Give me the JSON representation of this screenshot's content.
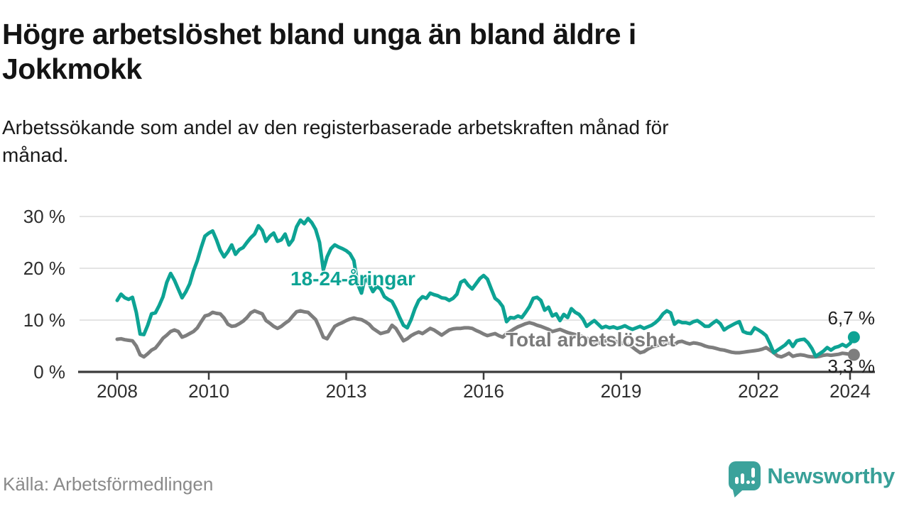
{
  "header": {
    "title": "Högre arbetslöshet bland unga än bland äldre i\nJokkmokk",
    "subtitle": "Arbetssökande som andel av den registerbaserade arbetskraften månad för\nmånad."
  },
  "footer": {
    "source": "Källa: Arbetsförmedlingen",
    "brand": "Newsworthy"
  },
  "colors": {
    "youth_line": "#0da394",
    "total_line": "#7e7e7e",
    "gridline": "#dcdcdc",
    "axis": "#3c3c3c",
    "tick_text": "#2e2e2e",
    "end_label_text": "#1f1f1f",
    "brand_teal": "#3ba29b"
  },
  "chart_data": {
    "type": "line",
    "title": "Högre arbetslöshet bland unga än bland äldre i Jokkmokk",
    "xlabel": "",
    "ylabel": "Arbetssökande som andel av den registerbaserade arbetskraften",
    "x_unit": "monthly, January 2008 – February 2024",
    "ylim": [
      0,
      31
    ],
    "grid": "horizontal",
    "legend_position": "inline-labels",
    "y_ticks": [
      0,
      10,
      20,
      30
    ],
    "y_tick_labels": [
      "0 %",
      "10 %",
      "20 %",
      "30 %"
    ],
    "x_tick_years": [
      2008,
      2010,
      2013,
      2016,
      2019,
      2022,
      2024
    ],
    "x_tick_labels": [
      "2008",
      "2010",
      "2013",
      "2016",
      "2019",
      "2022",
      "2024"
    ],
    "start_year": 2008,
    "series": [
      {
        "name": "Total arbetslöshet",
        "color": "#7e7e7e",
        "end_label": "3,3 %",
        "end_value": 3.3,
        "values_monthly": [
          6.3,
          6.4,
          6.2,
          6.1,
          6.0,
          5.0,
          3.3,
          2.9,
          3.5,
          4.2,
          4.6,
          5.5,
          6.5,
          7.1,
          7.8,
          8.1,
          7.8,
          6.7,
          7.0,
          7.4,
          7.8,
          8.5,
          9.7,
          10.8,
          11.0,
          11.5,
          11.3,
          11.2,
          10.4,
          9.2,
          8.8,
          8.9,
          9.3,
          9.8,
          10.5,
          11.4,
          11.8,
          11.5,
          11.2,
          9.9,
          9.4,
          8.8,
          8.4,
          8.8,
          9.4,
          9.9,
          10.8,
          11.6,
          11.8,
          11.6,
          11.5,
          10.8,
          10.1,
          8.5,
          6.7,
          6.4,
          7.6,
          8.8,
          9.2,
          9.5,
          9.9,
          10.2,
          10.4,
          10.2,
          10.1,
          9.7,
          9.2,
          8.4,
          7.9,
          7.4,
          7.6,
          7.8,
          9.0,
          8.4,
          7.2,
          6.0,
          6.4,
          7.0,
          7.4,
          7.7,
          7.4,
          7.9,
          8.4,
          8.1,
          7.6,
          7.1,
          7.6,
          8.1,
          8.3,
          8.4,
          8.4,
          8.5,
          8.5,
          8.4,
          8.0,
          7.7,
          7.3,
          7.0,
          7.2,
          7.4,
          7.0,
          6.7,
          7.4,
          7.8,
          8.3,
          8.7,
          9.0,
          9.3,
          9.5,
          9.3,
          9.0,
          8.8,
          8.5,
          8.2,
          7.8,
          8.0,
          8.2,
          7.9,
          7.6,
          7.4,
          7.2,
          7.0,
          6.8,
          6.5,
          6.2,
          5.8,
          5.5,
          5.8,
          6.0,
          6.2,
          6.0,
          5.8,
          5.6,
          5.4,
          5.2,
          4.8,
          4.2,
          3.7,
          3.9,
          4.4,
          4.8,
          5.0,
          5.2,
          5.5,
          5.6,
          5.5,
          5.3,
          5.8,
          5.9,
          5.6,
          5.4,
          5.6,
          5.5,
          5.3,
          5.0,
          4.8,
          4.7,
          4.5,
          4.3,
          4.2,
          4.0,
          3.8,
          3.7,
          3.7,
          3.8,
          3.9,
          4.0,
          4.1,
          4.2,
          4.4,
          4.7,
          4.2,
          3.7,
          3.1,
          2.9,
          3.2,
          3.6,
          3.0,
          3.2,
          3.3,
          3.2,
          3.0,
          2.9,
          2.9,
          3.0,
          3.2,
          3.3,
          3.2,
          3.3,
          3.4,
          3.6,
          3.5,
          3.4,
          3.3
        ]
      },
      {
        "name": "18-24-åringar",
        "color": "#0da394",
        "end_label": "6,7 %",
        "end_value": 6.7,
        "values_monthly": [
          13.8,
          15.0,
          14.3,
          14.0,
          14.4,
          11.5,
          7.3,
          7.2,
          9.0,
          11.2,
          11.4,
          12.8,
          14.5,
          17.3,
          19.0,
          17.7,
          16.0,
          14.3,
          15.5,
          17.0,
          19.5,
          21.5,
          24.0,
          26.2,
          26.8,
          27.2,
          25.5,
          23.5,
          22.2,
          23.2,
          24.5,
          22.7,
          23.6,
          24.0,
          25.0,
          25.9,
          26.6,
          28.2,
          27.3,
          25.2,
          26.2,
          26.8,
          25.2,
          25.5,
          26.6,
          24.5,
          25.5,
          28.0,
          29.3,
          28.6,
          29.6,
          28.8,
          27.5,
          25.0,
          19.7,
          22.2,
          23.8,
          24.5,
          24.1,
          23.8,
          23.4,
          22.8,
          21.5,
          17.0,
          15.2,
          18.4,
          17.0,
          15.5,
          16.5,
          16.0,
          14.5,
          14.0,
          13.6,
          12.2,
          10.5,
          9.0,
          8.5,
          10.1,
          12.2,
          13.8,
          14.5,
          14.2,
          15.2,
          14.9,
          14.7,
          14.3,
          14.2,
          13.8,
          14.2,
          15.0,
          17.3,
          17.7,
          16.7,
          16.0,
          17.0,
          18.0,
          18.6,
          17.9,
          16.0,
          14.2,
          13.6,
          12.6,
          9.7,
          10.5,
          10.4,
          10.8,
          10.5,
          11.5,
          12.6,
          14.2,
          14.4,
          13.8,
          11.9,
          12.5,
          10.8,
          11.2,
          9.9,
          11.1,
          10.5,
          12.2,
          11.5,
          11.1,
          10.2,
          8.8,
          9.4,
          9.9,
          9.2,
          8.5,
          8.8,
          8.5,
          8.7,
          8.4,
          8.6,
          8.9,
          8.5,
          8.2,
          8.5,
          8.8,
          8.4,
          8.7,
          9.0,
          9.5,
          10.2,
          11.2,
          11.8,
          11.4,
          9.2,
          9.8,
          9.5,
          9.5,
          9.3,
          9.7,
          9.9,
          9.4,
          8.8,
          8.8,
          9.4,
          9.9,
          9.3,
          8.1,
          8.6,
          9.0,
          9.4,
          9.7,
          7.8,
          7.5,
          7.4,
          8.5,
          8.1,
          7.6,
          7.0,
          5.5,
          3.7,
          4.2,
          4.7,
          5.2,
          6.0,
          4.9,
          6.0,
          6.2,
          6.3,
          5.6,
          4.5,
          3.0,
          3.5,
          4.0,
          4.7,
          4.2,
          4.7,
          4.9,
          5.3,
          4.9,
          5.5,
          6.7
        ]
      }
    ]
  }
}
